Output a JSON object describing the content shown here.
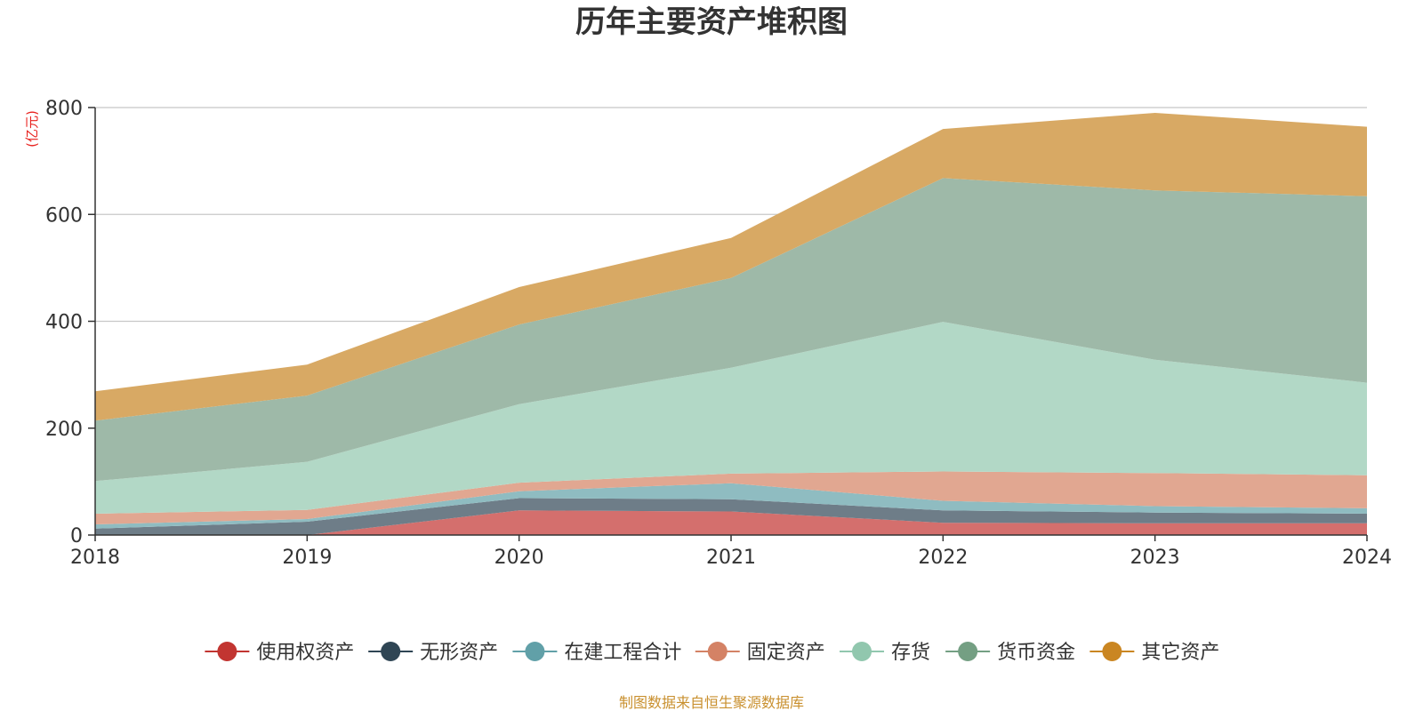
{
  "chart_data": {
    "type": "area",
    "stacked": true,
    "title": "历年主要资产堆积图",
    "y_unit": "(亿元)",
    "x": [
      "2018",
      "2019",
      "2020",
      "2021",
      "2022",
      "2023",
      "2024"
    ],
    "ylim": [
      0,
      800
    ],
    "yticks": [
      "0",
      "200",
      "400",
      "600",
      "800"
    ],
    "grid": true,
    "legend_position": "bottom",
    "series": [
      {
        "name": "使用权资产",
        "color": "#c23531",
        "area_color": "#d46f6d",
        "values": [
          0,
          0,
          46,
          44,
          23,
          22,
          22
        ]
      },
      {
        "name": "无形资产",
        "color": "#2f4554",
        "area_color": "#6e7d88",
        "values": [
          12,
          25,
          23,
          23,
          23,
          20,
          18
        ]
      },
      {
        "name": "在建工程合计",
        "color": "#61a0a8",
        "area_color": "#8fbcc1",
        "values": [
          8,
          5,
          13,
          30,
          18,
          12,
          10
        ]
      },
      {
        "name": "固定资产",
        "color": "#d48265",
        "area_color": "#e1a791",
        "values": [
          20,
          17,
          16,
          18,
          55,
          62,
          62
        ]
      },
      {
        "name": "存货",
        "color": "#91c7ae",
        "area_color": "#b2d8c6",
        "values": [
          61,
          90,
          147,
          198,
          280,
          212,
          173
        ]
      },
      {
        "name": "货币资金",
        "color": "#749f83",
        "area_color": "#9eb9a8",
        "values": [
          113,
          124,
          149,
          168,
          269,
          317,
          349
        ]
      },
      {
        "name": "其它资产",
        "color": "#ca8622",
        "area_color": "#d8a964",
        "values": [
          55,
          58,
          70,
          75,
          92,
          145,
          130
        ]
      }
    ]
  },
  "footer": {
    "source": "制图数据来自恒生聚源数据库",
    "source_color": "#c9902f"
  },
  "colors": {
    "unit_label": "#e8221e"
  }
}
